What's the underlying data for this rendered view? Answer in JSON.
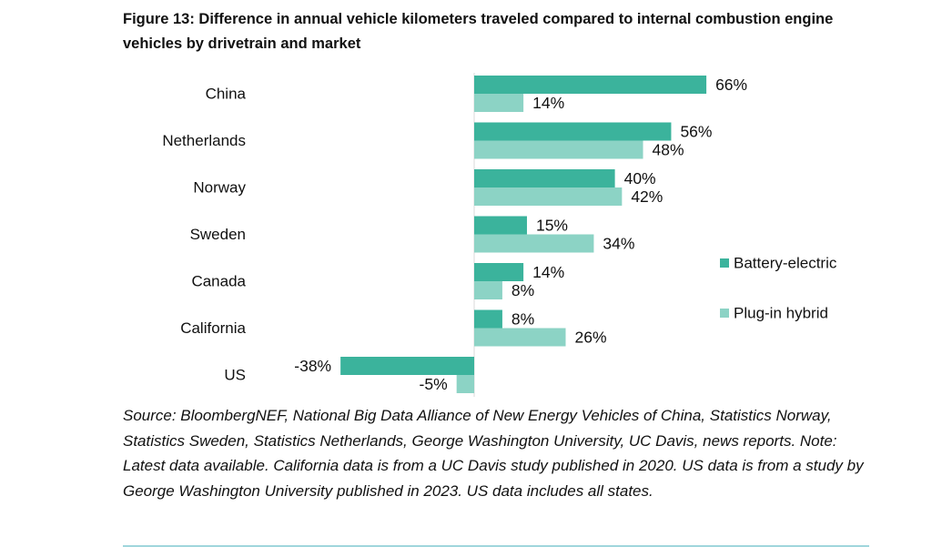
{
  "title": "Figure 13: Difference in annual vehicle kilometers traveled compared to internal combustion engine vehicles by drivetrain and market",
  "source": "Source: BloombergNEF, National Big Data Alliance of New Energy Vehicles of China, Statistics Norway, Statistics Sweden, Statistics Netherlands, George Washington University, UC Davis, news reports. Note: Latest data available. California data is from a UC Davis study published in 2020. US data is from a study by George Washington University published in 2023. US data includes all states.",
  "chart_data": {
    "type": "bar",
    "orientation": "horizontal",
    "title": "Figure 13: Difference in annual vehicle kilometers traveled compared to internal combustion engine vehicles by drivetrain and market",
    "categories": [
      "China",
      "Netherlands",
      "Norway",
      "Sweden",
      "Canada",
      "California",
      "US"
    ],
    "series": [
      {
        "name": "Battery-electric",
        "color": "#3bb39c",
        "values": [
          66,
          56,
          40,
          15,
          14,
          8,
          -38
        ]
      },
      {
        "name": "Plug-in hybrid",
        "color": "#8cd3c5",
        "values": [
          14,
          48,
          42,
          34,
          8,
          26,
          -5
        ]
      }
    ],
    "unit": "%",
    "xlim": [
      -40,
      70
    ],
    "legend_position": "right",
    "grid": false,
    "data_labels": true
  }
}
